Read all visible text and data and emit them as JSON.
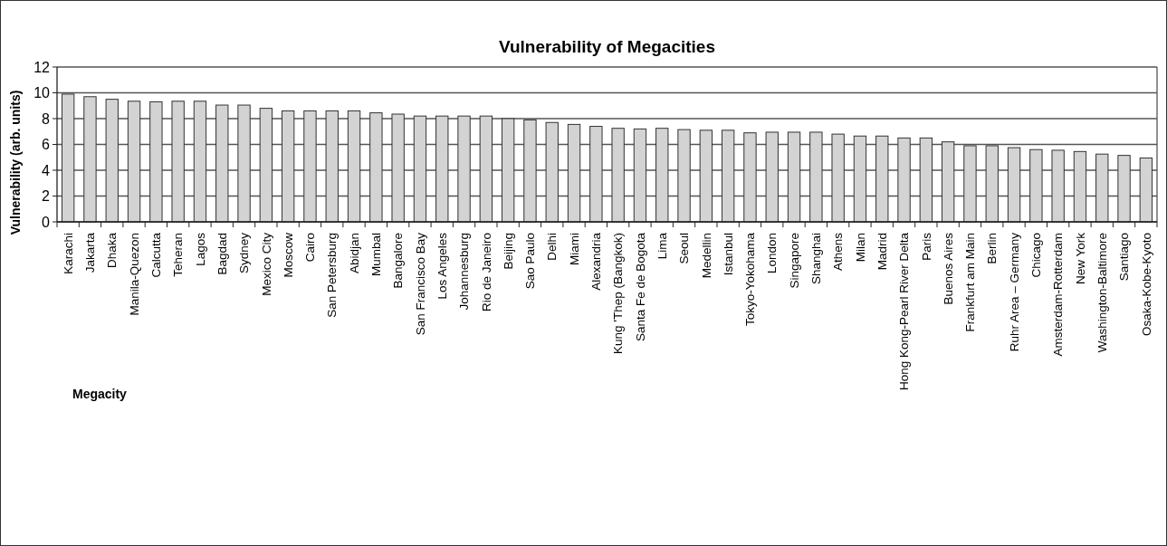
{
  "chart_data": {
    "type": "bar",
    "title": "Vulnerability of Megacities",
    "xlabel": "Megacity",
    "ylabel": "Vulnerability (arb. units)",
    "categories": [
      "Karachi",
      "Jakarta",
      "Dhaka",
      "Manila-Quezon",
      "Calcutta",
      "Teheran",
      "Lagos",
      "Bagdad",
      "Sydney",
      "Mexico City",
      "Moscow",
      "Cairo",
      "San Petersburg",
      "Abidjan",
      "Mumbal",
      "Bangalore",
      "San Francisco Bay",
      "Los Angeles",
      "Johannesburg",
      "Rio de Janeiro",
      "Beijing",
      "Sao Paulo",
      "Delhi",
      "Miami",
      "Alexandria",
      "Kung 'Thep (Bangkok)",
      "Santa Fe de Bogota",
      "Lima",
      "Seoul",
      "Medellin",
      "Istanbul",
      "Tokyo-Yokohama",
      "London",
      "Singapore",
      "Shanghai",
      "Athens",
      "Milan",
      "Madrid",
      "Hong Kong-Pearl River Delta",
      "Paris",
      "Buenos Aires",
      "Frankfurt am Main",
      "Berlin",
      "Ruhr Area – Germany",
      "Chicago",
      "Amsterdam-Rotterdam",
      "New York",
      "Washington-Baltimore",
      "Santiago",
      "Osaka-Kobe-Kyoto"
    ],
    "values": [
      9.9,
      9.7,
      9.5,
      9.35,
      9.3,
      9.35,
      9.35,
      9.05,
      9.05,
      8.8,
      8.6,
      8.6,
      8.6,
      8.6,
      8.45,
      8.35,
      8.2,
      8.2,
      8.2,
      8.2,
      8.0,
      7.9,
      7.7,
      7.55,
      7.4,
      7.25,
      7.2,
      7.25,
      7.15,
      7.1,
      7.1,
      6.9,
      6.95,
      6.95,
      6.95,
      6.8,
      6.65,
      6.65,
      6.5,
      6.5,
      6.2,
      5.9,
      5.9,
      5.75,
      5.6,
      5.55,
      5.45,
      5.25,
      5.15,
      4.95
    ],
    "color": "#d3d3d3",
    "ylim": [
      0,
      12
    ],
    "yticks": [
      0,
      2,
      4,
      6,
      8,
      10,
      12
    ],
    "grid": "y"
  }
}
